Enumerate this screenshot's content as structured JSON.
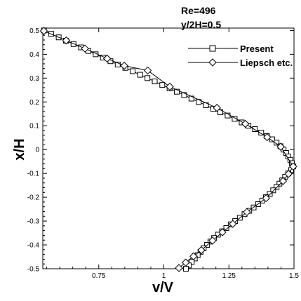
{
  "chart_data": {
    "type": "line",
    "xlabel": "v/V",
    "ylabel": "x/H",
    "xlim": [
      0.535,
      1.5
    ],
    "ylim": [
      -0.5,
      0.51
    ],
    "x_ticks": [
      0.75,
      1,
      1.25,
      1.5
    ],
    "x_tick_labels": [
      "0.75",
      "1",
      "1.25",
      "1.5"
    ],
    "y_ticks": [
      0.5,
      0.4,
      0.3,
      0.2,
      0.1,
      0,
      -0.1,
      -0.2,
      -0.3,
      -0.4,
      -0.5
    ],
    "y_tick_labels": [
      "0.5",
      "0.4",
      "0.3",
      "0.2",
      "0.1",
      "0",
      "-0.1",
      "-0.2",
      "-0.3",
      "-0.4",
      "-0.5"
    ],
    "annotations": [
      "Re=496",
      "y/2H=0.5"
    ],
    "legend_position": "top-right",
    "grid": false,
    "series": [
      {
        "name": "Present",
        "marker": "square",
        "color": "#000000",
        "points": [
          {
            "x": 0.539,
            "y": 0.5
          },
          {
            "x": 0.567,
            "y": 0.486
          },
          {
            "x": 0.596,
            "y": 0.471
          },
          {
            "x": 0.624,
            "y": 0.457
          },
          {
            "x": 0.653,
            "y": 0.443
          },
          {
            "x": 0.682,
            "y": 0.429
          },
          {
            "x": 0.71,
            "y": 0.414
          },
          {
            "x": 0.738,
            "y": 0.4
          },
          {
            "x": 0.766,
            "y": 0.386
          },
          {
            "x": 0.795,
            "y": 0.371
          },
          {
            "x": 0.823,
            "y": 0.357
          },
          {
            "x": 0.852,
            "y": 0.343
          },
          {
            "x": 0.88,
            "y": 0.329
          },
          {
            "x": 0.909,
            "y": 0.314
          },
          {
            "x": 0.937,
            "y": 0.3
          },
          {
            "x": 0.965,
            "y": 0.286
          },
          {
            "x": 0.994,
            "y": 0.271
          },
          {
            "x": 1.022,
            "y": 0.257
          },
          {
            "x": 1.05,
            "y": 0.243
          },
          {
            "x": 1.078,
            "y": 0.229
          },
          {
            "x": 1.106,
            "y": 0.214
          },
          {
            "x": 1.134,
            "y": 0.2
          },
          {
            "x": 1.162,
            "y": 0.186
          },
          {
            "x": 1.19,
            "y": 0.171
          },
          {
            "x": 1.217,
            "y": 0.157
          },
          {
            "x": 1.245,
            "y": 0.143
          },
          {
            "x": 1.272,
            "y": 0.129
          },
          {
            "x": 1.299,
            "y": 0.114
          },
          {
            "x": 1.325,
            "y": 0.1
          },
          {
            "x": 1.35,
            "y": 0.086
          },
          {
            "x": 1.374,
            "y": 0.071
          },
          {
            "x": 1.396,
            "y": 0.057
          },
          {
            "x": 1.416,
            "y": 0.043
          },
          {
            "x": 1.433,
            "y": 0.029
          },
          {
            "x": 1.448,
            "y": 0.014
          },
          {
            "x": 1.46,
            "y": 0.0
          },
          {
            "x": 1.47,
            "y": -0.014
          },
          {
            "x": 1.478,
            "y": -0.029
          },
          {
            "x": 1.486,
            "y": -0.043
          },
          {
            "x": 1.492,
            "y": -0.057
          },
          {
            "x": 1.497,
            "y": -0.071
          },
          {
            "x": 1.489,
            "y": -0.086
          },
          {
            "x": 1.478,
            "y": -0.1
          },
          {
            "x": 1.466,
            "y": -0.114
          },
          {
            "x": 1.455,
            "y": -0.129
          },
          {
            "x": 1.444,
            "y": -0.143
          },
          {
            "x": 1.433,
            "y": -0.157
          },
          {
            "x": 1.42,
            "y": -0.171
          },
          {
            "x": 1.407,
            "y": -0.186
          },
          {
            "x": 1.392,
            "y": -0.2
          },
          {
            "x": 1.378,
            "y": -0.214
          },
          {
            "x": 1.362,
            "y": -0.229
          },
          {
            "x": 1.345,
            "y": -0.243
          },
          {
            "x": 1.328,
            "y": -0.257
          },
          {
            "x": 1.31,
            "y": -0.271
          },
          {
            "x": 1.292,
            "y": -0.286
          },
          {
            "x": 1.274,
            "y": -0.3
          },
          {
            "x": 1.257,
            "y": -0.314
          },
          {
            "x": 1.24,
            "y": -0.329
          },
          {
            "x": 1.224,
            "y": -0.343
          },
          {
            "x": 1.208,
            "y": -0.357
          },
          {
            "x": 1.193,
            "y": -0.371
          },
          {
            "x": 1.179,
            "y": -0.386
          },
          {
            "x": 1.166,
            "y": -0.4
          },
          {
            "x": 1.153,
            "y": -0.414
          },
          {
            "x": 1.141,
            "y": -0.429
          },
          {
            "x": 1.13,
            "y": -0.443
          },
          {
            "x": 1.119,
            "y": -0.457
          },
          {
            "x": 1.107,
            "y": -0.471
          },
          {
            "x": 1.096,
            "y": -0.486
          },
          {
            "x": 1.085,
            "y": -0.5
          }
        ]
      },
      {
        "name": "Liepsch etc.",
        "marker": "diamond",
        "color": "#000000",
        "points": [
          {
            "x": 0.539,
            "y": 0.498
          },
          {
            "x": 0.625,
            "y": 0.458
          },
          {
            "x": 0.697,
            "y": 0.424
          },
          {
            "x": 0.782,
            "y": 0.382
          },
          {
            "x": 0.848,
            "y": 0.352
          },
          {
            "x": 0.938,
            "y": 0.332
          },
          {
            "x": 1.023,
            "y": 0.264
          },
          {
            "x": 1.204,
            "y": 0.175
          },
          {
            "x": 1.313,
            "y": 0.108
          },
          {
            "x": 1.397,
            "y": 0.052
          },
          {
            "x": 1.449,
            "y": 0.012
          },
          {
            "x": 1.497,
            "y": -0.071
          },
          {
            "x": 1.479,
            "y": -0.102
          },
          {
            "x": 1.458,
            "y": -0.132
          },
          {
            "x": 1.393,
            "y": -0.204
          },
          {
            "x": 1.319,
            "y": -0.262
          },
          {
            "x": 1.265,
            "y": -0.312
          },
          {
            "x": 1.225,
            "y": -0.347
          },
          {
            "x": 1.187,
            "y": -0.382
          },
          {
            "x": 1.144,
            "y": -0.422
          },
          {
            "x": 1.114,
            "y": -0.448
          },
          {
            "x": 1.084,
            "y": -0.474
          },
          {
            "x": 1.058,
            "y": -0.497
          }
        ]
      }
    ]
  }
}
